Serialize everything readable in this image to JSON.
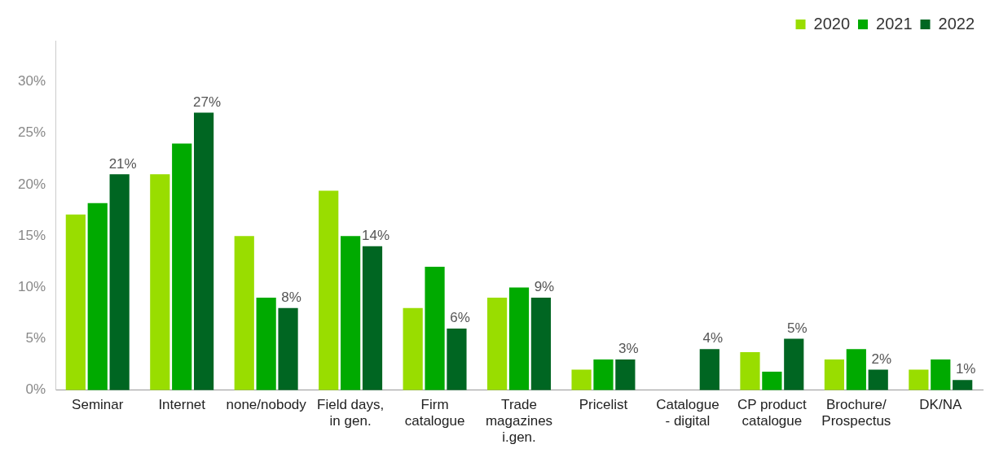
{
  "chart_data": {
    "type": "bar",
    "categories": [
      "Seminar",
      "Internet",
      "none/nobody",
      "Field days,\nin gen.",
      "Firm\ncatalogue",
      "Trade\nmagazines\ni.gen.",
      "Pricelist",
      "Catalogue\n- digital",
      "CP product\ncatalogue",
      "Brochure/\nProspectus",
      "DK/NA"
    ],
    "series": [
      {
        "name": "2020",
        "color": "#99dd00",
        "values": [
          17.1,
          21,
          15,
          19.4,
          8,
          9,
          2,
          null,
          3.7,
          3,
          2
        ]
      },
      {
        "name": "2021",
        "color": "#00aa00",
        "values": [
          18.2,
          24,
          9,
          15,
          12,
          10,
          3,
          null,
          1.8,
          4,
          3
        ]
      },
      {
        "name": "2022",
        "color": "#006622",
        "values": [
          21,
          27,
          8,
          14,
          6,
          9,
          3,
          4,
          5,
          2,
          1
        ],
        "value_labels": [
          "21%",
          "27%",
          "8%",
          "14%",
          "6%",
          "9%",
          "3%",
          "4%",
          "5%",
          "2%",
          "1%"
        ]
      }
    ],
    "ylim": [
      0,
      34
    ],
    "yticks": [
      {
        "value": 0,
        "label": "0%"
      },
      {
        "value": 5,
        "label": "5%"
      },
      {
        "value": 10,
        "label": "10%"
      },
      {
        "value": 15,
        "label": "15%"
      },
      {
        "value": 20,
        "label": "20%"
      },
      {
        "value": 25,
        "label": "25%"
      },
      {
        "value": 30,
        "label": "30%"
      }
    ],
    "grid": false,
    "legend": "top right"
  }
}
